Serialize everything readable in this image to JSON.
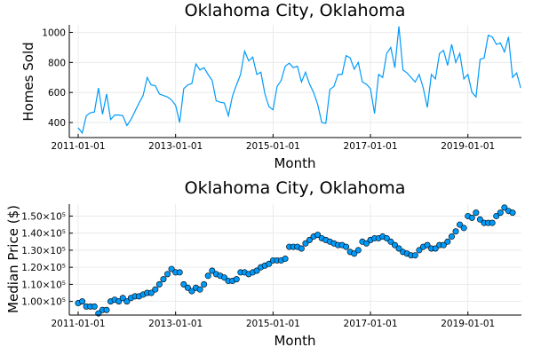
{
  "chart_data": [
    {
      "type": "line",
      "title": "Oklahoma City, Oklahoma",
      "xlabel": "Month",
      "ylabel": "Homes Sold",
      "x_ticks": [
        "2011-01-01",
        "2013-01-01",
        "2015-01-01",
        "2017-01-01",
        "2019-01-01"
      ],
      "y_ticks": [
        "400",
        "600",
        "800",
        "1000"
      ],
      "xlim": [
        "2011-01-01",
        "2019-12-01"
      ],
      "ylim": [
        300,
        1050
      ],
      "grid": true,
      "color": "#009af9",
      "series": [
        {
          "values": [
            365,
            330,
            445,
            465,
            470,
            630,
            455,
            590,
            420,
            450,
            450,
            445,
            380,
            420,
            475,
            530,
            580,
            700,
            650,
            645,
            590,
            580,
            570,
            550,
            515,
            400,
            625,
            650,
            660,
            790,
            750,
            765,
            720,
            680,
            545,
            535,
            530,
            445,
            575,
            650,
            720,
            875,
            810,
            835,
            720,
            735,
            590,
            505,
            485,
            640,
            680,
            775,
            795,
            765,
            775,
            670,
            735,
            655,
            600,
            520,
            400,
            395,
            620,
            640,
            720,
            720,
            845,
            830,
            755,
            800,
            670,
            655,
            625,
            460,
            720,
            700,
            860,
            900,
            765,
            1040,
            750,
            730,
            700,
            670,
            720,
            630,
            500,
            720,
            690,
            860,
            880,
            780,
            920,
            800,
            860,
            690,
            720,
            600,
            570,
            820,
            830,
            980,
            970,
            920,
            930,
            870,
            970,
            700,
            730,
            630
          ]
        }
      ]
    },
    {
      "type": "scatter",
      "title": "Oklahoma City, Oklahoma",
      "xlabel": "Month",
      "ylabel": "Median Price ($)",
      "x_ticks": [
        "2011-01-01",
        "2013-01-01",
        "2015-01-01",
        "2017-01-01",
        "2019-01-01"
      ],
      "y_tick_values": [
        100000,
        110000,
        120000,
        130000,
        140000,
        150000
      ],
      "y_ticks": [
        "1.00×10⁵",
        "1.10×10⁵",
        "1.20×10⁵",
        "1.30×10⁵",
        "1.40×10⁵",
        "1.50×10⁵"
      ],
      "xlim": [
        "2011-01-01",
        "2019-12-01"
      ],
      "ylim": [
        92000,
        157000
      ],
      "grid": true,
      "color": "#009af9",
      "series": [
        {
          "values": [
            99000,
            100000,
            97000,
            97000,
            97000,
            93000,
            95000,
            95000,
            100000,
            101000,
            100000,
            102000,
            100000,
            102000,
            103000,
            103000,
            104000,
            105000,
            105000,
            107000,
            110000,
            113000,
            116000,
            119000,
            117000,
            117000,
            110000,
            108000,
            106000,
            108000,
            107000,
            110000,
            115000,
            118000,
            116000,
            115000,
            114000,
            112000,
            112000,
            113000,
            117000,
            117000,
            116000,
            117000,
            118000,
            120000,
            121000,
            122000,
            124000,
            124000,
            124000,
            125000,
            132000,
            132000,
            132000,
            131000,
            134000,
            136000,
            138000,
            139000,
            137000,
            136000,
            135000,
            134000,
            133000,
            133000,
            132000,
            129000,
            128000,
            130000,
            135000,
            134000,
            136000,
            137000,
            137000,
            138000,
            137000,
            135000,
            133000,
            131000,
            129000,
            128000,
            127000,
            127000,
            130000,
            132000,
            133000,
            131000,
            131000,
            133000,
            133000,
            135000,
            138000,
            141000,
            145000,
            143000,
            150000,
            149000,
            152000,
            148000,
            146000,
            146000,
            146000,
            150000,
            152000,
            155000,
            153000,
            152000
          ]
        }
      ]
    }
  ]
}
